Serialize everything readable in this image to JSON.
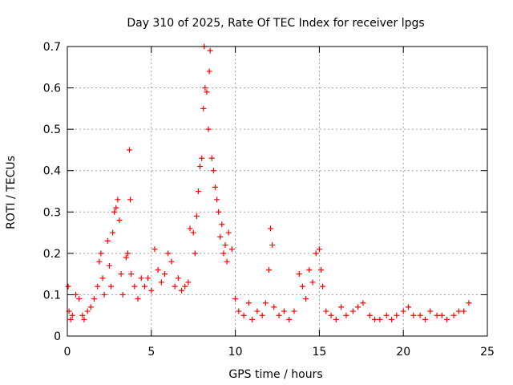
{
  "chart_data": {
    "type": "scatter",
    "title": "Day 310 of 2025, Rate Of TEC Index for receiver lpgs",
    "xlabel": "GPS time / hours",
    "ylabel": "ROTI / TECUs",
    "xlim": [
      0,
      25
    ],
    "ylim": [
      0,
      0.7
    ],
    "xticks": [
      0,
      5,
      10,
      15,
      20,
      25
    ],
    "yticks": [
      0,
      0.1,
      0.2,
      0.3,
      0.4,
      0.5,
      0.6,
      0.7
    ],
    "grid": true,
    "marker": "+",
    "colors": {
      "points": "#ff0000",
      "grid": "#a0a0a0",
      "axes": "#000000"
    },
    "series": [
      {
        "points": [
          [
            0.05,
            0.12
          ],
          [
            0.1,
            0.06
          ],
          [
            0.2,
            0.04
          ],
          [
            0.3,
            0.05
          ],
          [
            0.5,
            0.1
          ],
          [
            0.7,
            0.09
          ],
          [
            0.9,
            0.05
          ],
          [
            1.0,
            0.04
          ],
          [
            1.2,
            0.06
          ],
          [
            1.4,
            0.07
          ],
          [
            1.6,
            0.09
          ],
          [
            1.8,
            0.12
          ],
          [
            1.9,
            0.18
          ],
          [
            2.0,
            0.2
          ],
          [
            2.1,
            0.14
          ],
          [
            2.2,
            0.1
          ],
          [
            2.4,
            0.23
          ],
          [
            2.5,
            0.17
          ],
          [
            2.6,
            0.12
          ],
          [
            2.7,
            0.25
          ],
          [
            2.8,
            0.3
          ],
          [
            2.9,
            0.31
          ],
          [
            3.0,
            0.33
          ],
          [
            3.1,
            0.28
          ],
          [
            3.2,
            0.15
          ],
          [
            3.3,
            0.1
          ],
          [
            3.5,
            0.19
          ],
          [
            3.6,
            0.2
          ],
          [
            3.7,
            0.45
          ],
          [
            3.75,
            0.33
          ],
          [
            3.8,
            0.15
          ],
          [
            4.0,
            0.12
          ],
          [
            4.2,
            0.09
          ],
          [
            4.4,
            0.14
          ],
          [
            4.6,
            0.12
          ],
          [
            4.8,
            0.14
          ],
          [
            5.0,
            0.11
          ],
          [
            5.2,
            0.21
          ],
          [
            5.4,
            0.16
          ],
          [
            5.6,
            0.13
          ],
          [
            5.8,
            0.15
          ],
          [
            6.0,
            0.2
          ],
          [
            6.2,
            0.18
          ],
          [
            6.4,
            0.12
          ],
          [
            6.6,
            0.14
          ],
          [
            6.8,
            0.11
          ],
          [
            7.0,
            0.12
          ],
          [
            7.2,
            0.13
          ],
          [
            7.3,
            0.26
          ],
          [
            7.5,
            0.25
          ],
          [
            7.6,
            0.2
          ],
          [
            7.7,
            0.29
          ],
          [
            7.8,
            0.35
          ],
          [
            7.9,
            0.41
          ],
          [
            8.0,
            0.43
          ],
          [
            8.1,
            0.55
          ],
          [
            8.15,
            0.7
          ],
          [
            8.2,
            0.6
          ],
          [
            8.3,
            0.59
          ],
          [
            8.4,
            0.5
          ],
          [
            8.45,
            0.64
          ],
          [
            8.5,
            0.69
          ],
          [
            8.6,
            0.43
          ],
          [
            8.7,
            0.4
          ],
          [
            8.8,
            0.36
          ],
          [
            8.9,
            0.33
          ],
          [
            9.0,
            0.3
          ],
          [
            9.1,
            0.24
          ],
          [
            9.2,
            0.27
          ],
          [
            9.3,
            0.2
          ],
          [
            9.4,
            0.22
          ],
          [
            9.5,
            0.18
          ],
          [
            9.6,
            0.25
          ],
          [
            9.8,
            0.21
          ],
          [
            10.0,
            0.09
          ],
          [
            10.2,
            0.06
          ],
          [
            10.5,
            0.05
          ],
          [
            10.8,
            0.08
          ],
          [
            11.0,
            0.04
          ],
          [
            11.3,
            0.06
          ],
          [
            11.6,
            0.05
          ],
          [
            11.8,
            0.08
          ],
          [
            12.0,
            0.16
          ],
          [
            12.1,
            0.26
          ],
          [
            12.2,
            0.22
          ],
          [
            12.3,
            0.07
          ],
          [
            12.6,
            0.05
          ],
          [
            12.9,
            0.06
          ],
          [
            13.2,
            0.04
          ],
          [
            13.5,
            0.06
          ],
          [
            13.8,
            0.15
          ],
          [
            14.0,
            0.12
          ],
          [
            14.2,
            0.09
          ],
          [
            14.4,
            0.16
          ],
          [
            14.6,
            0.13
          ],
          [
            14.8,
            0.2
          ],
          [
            15.0,
            0.21
          ],
          [
            15.1,
            0.16
          ],
          [
            15.2,
            0.12
          ],
          [
            15.4,
            0.06
          ],
          [
            15.7,
            0.05
          ],
          [
            16.0,
            0.04
          ],
          [
            16.3,
            0.07
          ],
          [
            16.6,
            0.05
          ],
          [
            17.0,
            0.06
          ],
          [
            17.3,
            0.07
          ],
          [
            17.6,
            0.08
          ],
          [
            18.0,
            0.05
          ],
          [
            18.3,
            0.04
          ],
          [
            18.6,
            0.04
          ],
          [
            19.0,
            0.05
          ],
          [
            19.3,
            0.04
          ],
          [
            19.6,
            0.05
          ],
          [
            20.0,
            0.06
          ],
          [
            20.3,
            0.07
          ],
          [
            20.6,
            0.05
          ],
          [
            21.0,
            0.05
          ],
          [
            21.3,
            0.04
          ],
          [
            21.6,
            0.06
          ],
          [
            22.0,
            0.05
          ],
          [
            22.3,
            0.05
          ],
          [
            22.6,
            0.04
          ],
          [
            23.0,
            0.05
          ],
          [
            23.3,
            0.06
          ],
          [
            23.6,
            0.06
          ],
          [
            23.9,
            0.08
          ]
        ]
      }
    ]
  }
}
